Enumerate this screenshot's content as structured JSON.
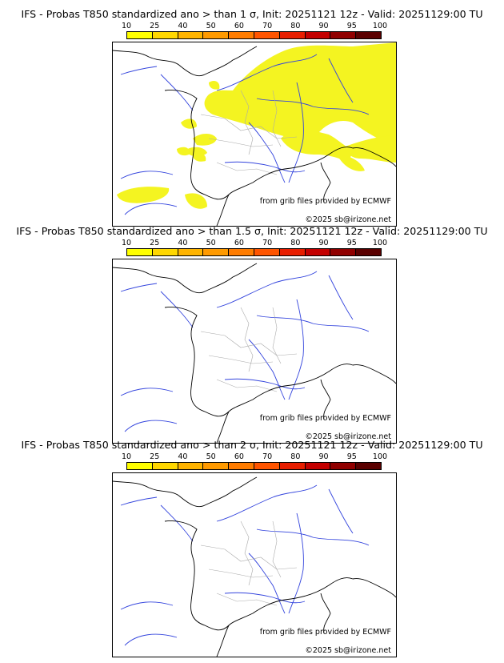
{
  "colorbar": {
    "ticks": [
      "10",
      "25",
      "40",
      "50",
      "60",
      "70",
      "80",
      "90",
      "95",
      "100"
    ],
    "colors": [
      "#ffff00",
      "#ffd700",
      "#ffb400",
      "#ff9a00",
      "#ff7c00",
      "#ff5500",
      "#e81e00",
      "#c40000",
      "#900000",
      "#5a0000"
    ]
  },
  "colors": {
    "coast": "#000000",
    "rivers": "#3344dd",
    "borders": "#aaaaaa",
    "probability": "#f4f421"
  },
  "panels": [
    {
      "title": "IFS - Probas T850  standardized ano > than 1 σ, Init: 20251121 12z - Valid: 20251129:00 TU",
      "credit1": "from grib files provided by ECMWF",
      "credit2": "©2025 sb@irizone.net"
    },
    {
      "title": "IFS - Probas T850  standardized ano > than 1.5 σ, Init: 20251121 12z - Valid: 20251129:00 TU",
      "credit1": "from grib files provided by ECMWF",
      "credit2": "©2025 sb@irizone.net"
    },
    {
      "title": "IFS - Probas T850  standardized ano > than 2 σ, Init: 20251121 12z - Valid: 20251129:00 TU",
      "credit1": "from grib files provided by ECMWF",
      "credit2": "©2025 sb@irizone.net"
    }
  ]
}
